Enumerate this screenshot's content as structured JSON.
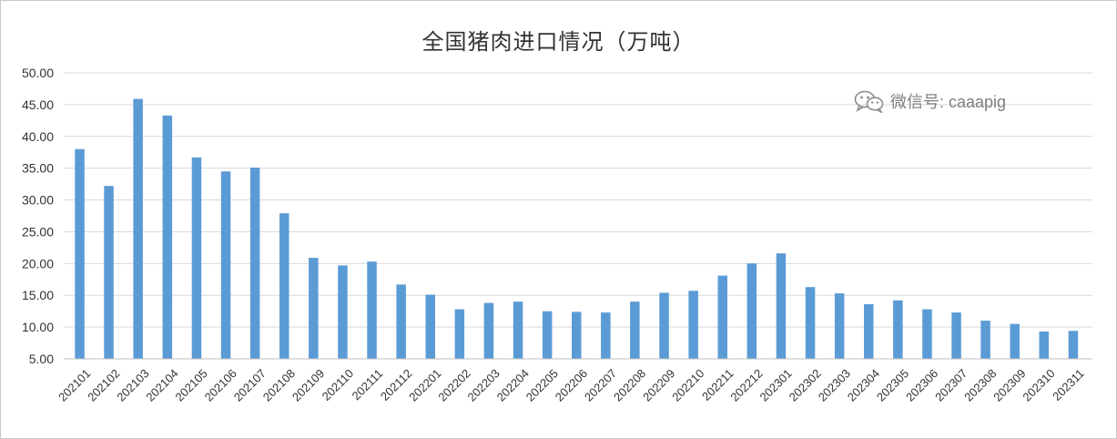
{
  "chart_data": {
    "type": "bar",
    "title": "全国猪肉进口情况（万吨）",
    "xlabel": "",
    "ylabel": "",
    "ylim": [
      5,
      50
    ],
    "yticks": [
      "5.00",
      "10.00",
      "15.00",
      "20.00",
      "25.00",
      "30.00",
      "35.00",
      "40.00",
      "45.00",
      "50.00"
    ],
    "grid": true,
    "legend": "none",
    "bar_color": "#5b9bd5",
    "categories": [
      "202101",
      "202102",
      "202103",
      "202104",
      "202105",
      "202106",
      "202107",
      "202108",
      "202109",
      "202110",
      "202111",
      "202112",
      "202201",
      "202202",
      "202203",
      "202204",
      "202205",
      "202206",
      "202207",
      "202208",
      "202209",
      "202210",
      "202211",
      "202212",
      "202301",
      "202302",
      "202303",
      "202304",
      "202305",
      "202306",
      "202307",
      "202308",
      "202309",
      "202310",
      "202311"
    ],
    "values": [
      38.0,
      32.2,
      45.9,
      43.3,
      36.7,
      34.5,
      35.1,
      27.9,
      20.9,
      19.7,
      20.3,
      16.7,
      15.1,
      12.8,
      13.8,
      14.0,
      12.5,
      12.4,
      12.3,
      14.0,
      15.4,
      15.7,
      18.1,
      20.0,
      21.6,
      16.3,
      15.3,
      13.6,
      14.2,
      12.8,
      12.3,
      11.0,
      10.5,
      9.3,
      9.4
    ]
  },
  "watermark": {
    "icon": "wechat-icon",
    "text": "微信号: caaapig"
  }
}
